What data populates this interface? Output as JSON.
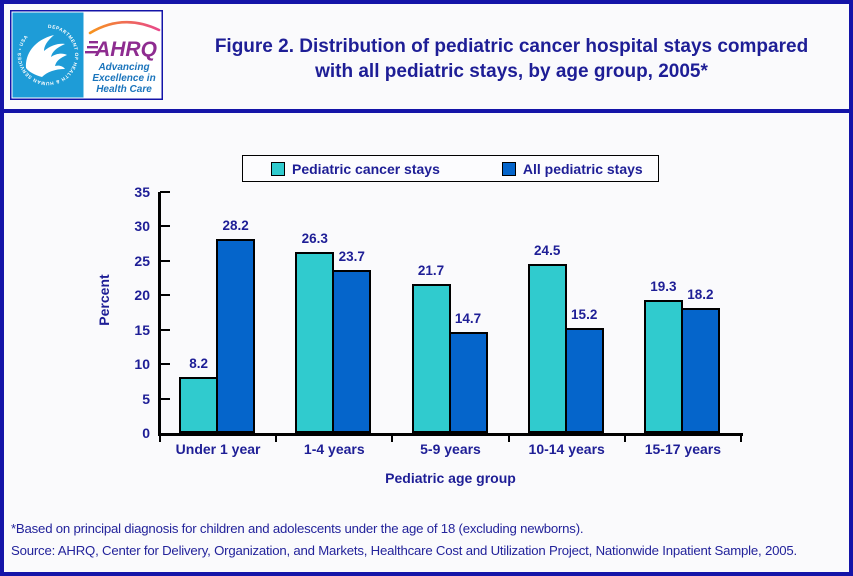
{
  "page": {
    "title": "Figure 2. Distribution of pediatric cancer hospital stays compared with all pediatric stays, by age group, 2005*"
  },
  "logo": {
    "seal_text": "DEPARTMENT OF HEALTH & HUMAN SERVICES • USA",
    "brand": "AHRQ",
    "tagline_lines": [
      "Advancing",
      "Excellence in",
      "Health Care"
    ]
  },
  "chart_data": {
    "type": "bar",
    "title": "Figure 2. Distribution of pediatric cancer hospital stays compared with all pediatric stays, by age group, 2005*",
    "categories": [
      "Under 1 year",
      "1-4 years",
      "5-9 years",
      "10-14 years",
      "15-17 years"
    ],
    "series": [
      {
        "name": "Pediatric cancer stays",
        "color": "#30CBCE",
        "values": [
          8.2,
          26.3,
          21.7,
          24.5,
          19.3
        ]
      },
      {
        "name": "All pediatric stays",
        "color": "#0565CB",
        "values": [
          28.2,
          23.7,
          14.7,
          15.2,
          18.2
        ]
      }
    ],
    "xlabel": "Pediatric age group",
    "ylabel": "Percent",
    "ylim": [
      0,
      35
    ],
    "ytick_step": 5,
    "grid": false,
    "legend_position": "top",
    "value_labels": true
  },
  "footnotes": {
    "note": "*Based on principal diagnosis for children and adolescents under the age of 18 (excluding newborns).",
    "source": "Source: AHRQ, Center for Delivery, Organization, and Markets, Healthcare Cost and Utilization Project, Nationwide Inpatient Sample, 2005."
  },
  "colors": {
    "navy_text": "#1E1E96",
    "footer_text": "#23239B",
    "frame_navy": "#1414A8",
    "cancer_bar": "#30CBCE",
    "all_pediatric_bar": "#0565CB",
    "seal_background": "#1E9CD7",
    "ahrq_purple": "#8E2C90",
    "tagline_blue": "#1B75BC",
    "axis_black": "#000000"
  }
}
